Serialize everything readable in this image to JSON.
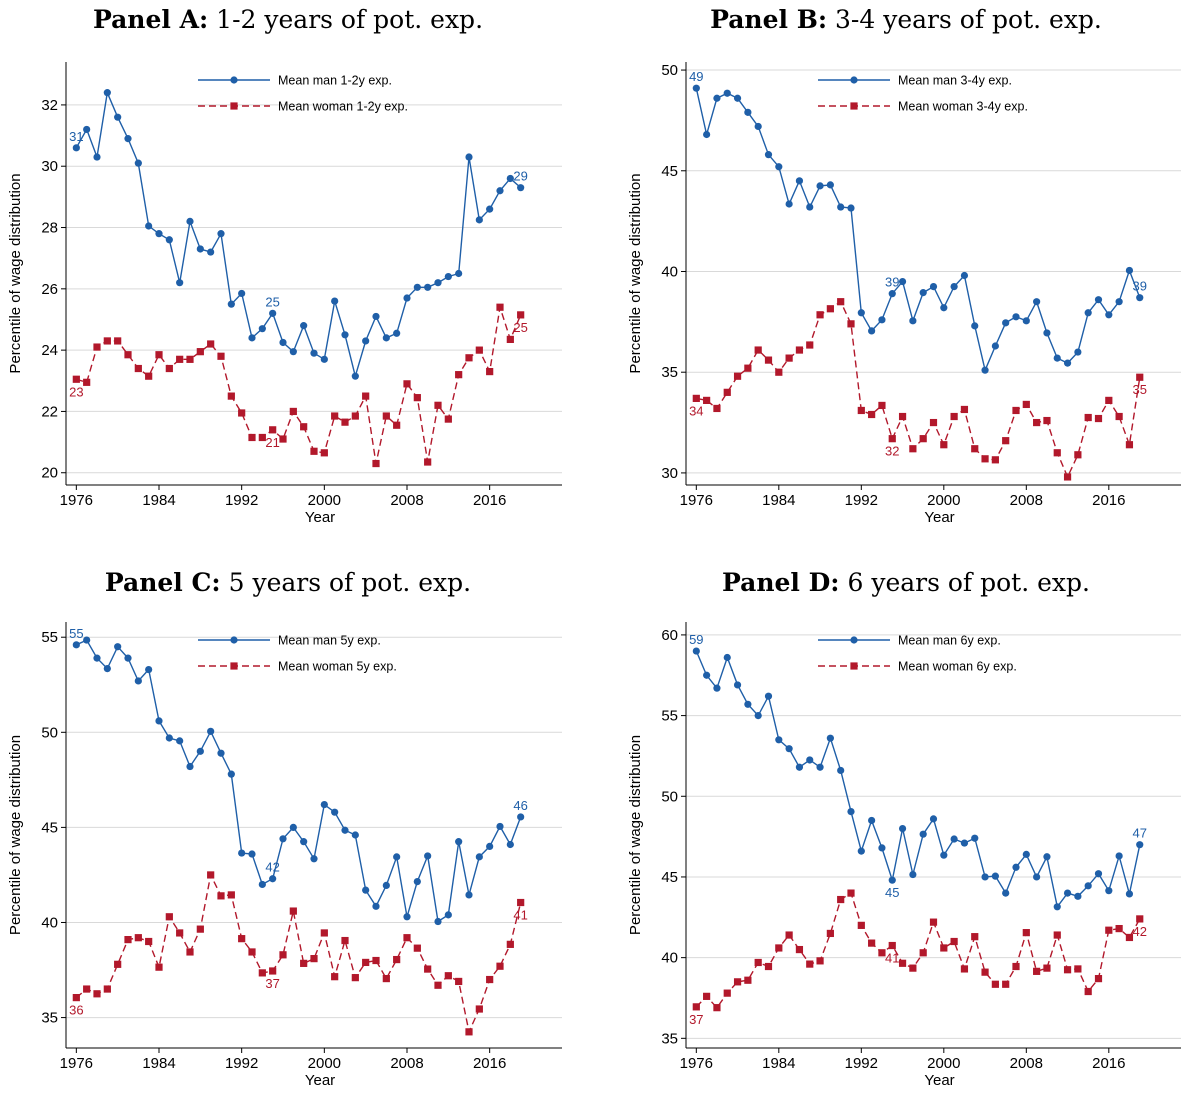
{
  "figure": {
    "colors": {
      "man": "#1f5fa8",
      "woman": "#b2182b",
      "grid": "#d9d9d9"
    }
  },
  "chart_data": [
    {
      "type": "line",
      "title_bold": "Panel A:",
      "title_rest": "1-2 years of pot. exp.",
      "xlabel": "Year",
      "ylabel": "Percentile of wage distribution",
      "xlim": [
        1975,
        2023
      ],
      "ylim": [
        19.6,
        33.4
      ],
      "xticks": [
        1976,
        1984,
        1992,
        2000,
        2008,
        2016
      ],
      "yticks": [
        20,
        22,
        24,
        26,
        28,
        30,
        32
      ],
      "legend_position": "top-center",
      "x": [
        1976,
        1977,
        1978,
        1979,
        1980,
        1981,
        1982,
        1983,
        1984,
        1985,
        1986,
        1987,
        1988,
        1989,
        1990,
        1991,
        1992,
        1993,
        1994,
        1995,
        1996,
        1997,
        1998,
        1999,
        2000,
        2001,
        2002,
        2003,
        2004,
        2005,
        2006,
        2007,
        2008,
        2009,
        2010,
        2011,
        2012,
        2013,
        2014,
        2015,
        2016,
        2017,
        2018,
        2019
      ],
      "series": [
        {
          "name": "Mean man 1-2y exp.",
          "marker": "circle",
          "dash": false,
          "values": [
            30.6,
            31.2,
            30.3,
            32.4,
            31.6,
            30.9,
            30.1,
            28.05,
            27.8,
            27.6,
            26.2,
            28.2,
            27.3,
            27.2,
            27.8,
            25.5,
            25.85,
            24.4,
            24.7,
            25.2,
            24.25,
            23.95,
            24.8,
            23.9,
            23.7,
            25.6,
            24.5,
            23.15,
            24.3,
            25.1,
            24.4,
            24.55,
            25.7,
            26.05,
            26.05,
            26.2,
            26.4,
            26.5,
            30.3,
            28.25,
            28.6,
            29.2,
            29.6,
            29.3
          ]
        },
        {
          "name": "Mean woman 1-2y exp.",
          "marker": "square",
          "dash": true,
          "values": [
            23.05,
            22.95,
            24.1,
            24.3,
            24.3,
            23.85,
            23.4,
            23.15,
            23.85,
            23.4,
            23.7,
            23.7,
            23.95,
            24.2,
            23.8,
            22.5,
            21.95,
            21.15,
            21.15,
            21.4,
            21.1,
            22.0,
            21.5,
            20.7,
            20.65,
            21.85,
            21.65,
            21.85,
            22.5,
            20.3,
            21.85,
            21.55,
            22.9,
            22.45,
            20.35,
            22.2,
            21.75,
            23.2,
            23.75,
            24.0,
            23.3,
            25.4,
            24.35,
            25.15
          ]
        }
      ],
      "annotations": [
        {
          "text": "31",
          "series": 0,
          "x": 1976,
          "pos": "above"
        },
        {
          "text": "25",
          "series": 0,
          "x": 1995,
          "pos": "above"
        },
        {
          "text": "29",
          "series": 0,
          "x": 2019,
          "pos": "above"
        },
        {
          "text": "23",
          "series": 1,
          "x": 1976,
          "pos": "below"
        },
        {
          "text": "21",
          "series": 1,
          "x": 1995,
          "pos": "below"
        },
        {
          "text": "25",
          "series": 1,
          "x": 2019,
          "pos": "below"
        }
      ]
    },
    {
      "type": "line",
      "title_bold": "Panel B:",
      "title_rest": "3-4 years of pot. exp.",
      "xlabel": "Year",
      "ylabel": "Percentile of wage distribution",
      "xlim": [
        1975,
        2023
      ],
      "ylim": [
        29.4,
        50.4
      ],
      "xticks": [
        1976,
        1984,
        1992,
        2000,
        2008,
        2016
      ],
      "yticks": [
        30,
        35,
        40,
        45,
        50
      ],
      "legend_position": "top-center",
      "x": [
        1976,
        1977,
        1978,
        1979,
        1980,
        1981,
        1982,
        1983,
        1984,
        1985,
        1986,
        1987,
        1988,
        1989,
        1990,
        1991,
        1992,
        1993,
        1994,
        1995,
        1996,
        1997,
        1998,
        1999,
        2000,
        2001,
        2002,
        2003,
        2004,
        2005,
        2006,
        2007,
        2008,
        2009,
        2010,
        2011,
        2012,
        2013,
        2014,
        2015,
        2016,
        2017,
        2018,
        2019
      ],
      "series": [
        {
          "name": "Mean man 3-4y exp.",
          "marker": "circle",
          "dash": false,
          "values": [
            49.1,
            46.8,
            48.6,
            48.85,
            48.6,
            47.9,
            47.2,
            45.8,
            45.2,
            43.35,
            44.5,
            43.2,
            44.25,
            44.3,
            43.2,
            43.15,
            37.95,
            37.05,
            37.6,
            38.9,
            39.5,
            37.55,
            38.95,
            39.25,
            38.2,
            39.25,
            39.8,
            37.3,
            35.1,
            36.3,
            37.45,
            37.75,
            37.55,
            38.5,
            36.95,
            35.7,
            35.45,
            36.0,
            37.95,
            38.6,
            37.85,
            38.5,
            40.05,
            38.7
          ]
        },
        {
          "name": "Mean woman 3-4y exp.",
          "marker": "square",
          "dash": true,
          "values": [
            33.7,
            33.6,
            33.2,
            34.0,
            34.8,
            35.2,
            36.1,
            35.6,
            35.0,
            35.7,
            36.1,
            36.35,
            37.85,
            38.15,
            38.5,
            37.4,
            33.1,
            32.9,
            33.35,
            31.7,
            32.8,
            31.2,
            31.7,
            32.5,
            31.4,
            32.8,
            33.15,
            31.2,
            30.7,
            30.65,
            31.6,
            33.1,
            33.4,
            32.5,
            32.6,
            31.0,
            29.8,
            30.9,
            32.75,
            32.7,
            33.6,
            32.8,
            31.4,
            34.75
          ]
        }
      ],
      "annotations": [
        {
          "text": "49",
          "series": 0,
          "x": 1976,
          "pos": "above"
        },
        {
          "text": "39",
          "series": 0,
          "x": 1995,
          "pos": "above"
        },
        {
          "text": "39",
          "series": 0,
          "x": 2019,
          "pos": "above"
        },
        {
          "text": "34",
          "series": 1,
          "x": 1976,
          "pos": "below"
        },
        {
          "text": "32",
          "series": 1,
          "x": 1995,
          "pos": "below"
        },
        {
          "text": "35",
          "series": 1,
          "x": 2019,
          "pos": "below"
        }
      ]
    },
    {
      "type": "line",
      "title_bold": "Panel C:",
      "title_rest": "5 years of pot. exp.",
      "xlabel": "Year",
      "ylabel": "Percentile of wage distribution",
      "xlim": [
        1975,
        2023
      ],
      "ylim": [
        33.4,
        55.8
      ],
      "xticks": [
        1976,
        1984,
        1992,
        2000,
        2008,
        2016
      ],
      "yticks": [
        35,
        40,
        45,
        50,
        55
      ],
      "legend_position": "top-center",
      "x": [
        1976,
        1977,
        1978,
        1979,
        1980,
        1981,
        1982,
        1983,
        1984,
        1985,
        1986,
        1987,
        1988,
        1989,
        1990,
        1991,
        1992,
        1993,
        1994,
        1995,
        1996,
        1997,
        1998,
        1999,
        2000,
        2001,
        2002,
        2003,
        2004,
        2005,
        2006,
        2007,
        2008,
        2009,
        2010,
        2011,
        2012,
        2013,
        2014,
        2015,
        2016,
        2017,
        2018,
        2019
      ],
      "series": [
        {
          "name": "Mean man 5y exp.",
          "marker": "circle",
          "dash": false,
          "values": [
            54.6,
            54.85,
            53.9,
            53.35,
            54.5,
            53.9,
            52.7,
            53.3,
            50.6,
            49.7,
            49.55,
            48.2,
            49.0,
            50.05,
            48.9,
            47.8,
            43.65,
            43.6,
            42.0,
            42.3,
            44.4,
            45.0,
            44.25,
            43.35,
            46.2,
            45.8,
            44.85,
            44.6,
            41.7,
            40.85,
            41.95,
            43.45,
            40.3,
            42.15,
            43.5,
            40.05,
            40.4,
            44.25,
            41.45,
            43.45,
            44.0,
            45.05,
            44.1,
            45.55
          ]
        },
        {
          "name": "Mean woman 5y exp.",
          "marker": "square",
          "dash": true,
          "values": [
            36.05,
            36.5,
            36.25,
            36.5,
            37.8,
            39.1,
            39.2,
            39.0,
            37.65,
            40.3,
            39.45,
            38.45,
            39.65,
            42.5,
            41.4,
            41.45,
            39.15,
            38.45,
            37.35,
            37.45,
            38.3,
            40.6,
            37.85,
            38.1,
            39.45,
            37.15,
            39.05,
            37.1,
            37.9,
            38.0,
            37.05,
            38.05,
            39.2,
            38.65,
            37.55,
            36.7,
            37.2,
            36.9,
            34.25,
            35.45,
            37.0,
            37.7,
            38.85,
            41.05
          ]
        }
      ],
      "annotations": [
        {
          "text": "55",
          "series": 0,
          "x": 1976,
          "pos": "above"
        },
        {
          "text": "42",
          "series": 0,
          "x": 1995,
          "pos": "above"
        },
        {
          "text": "46",
          "series": 0,
          "x": 2019,
          "pos": "above"
        },
        {
          "text": "36",
          "series": 1,
          "x": 1976,
          "pos": "below"
        },
        {
          "text": "37",
          "series": 1,
          "x": 1995,
          "pos": "below"
        },
        {
          "text": "41",
          "series": 1,
          "x": 2019,
          "pos": "below"
        }
      ]
    },
    {
      "type": "line",
      "title_bold": "Panel D:",
      "title_rest": "6 years of pot. exp.",
      "xlabel": "Year",
      "ylabel": "Percentile of wage distribution",
      "xlim": [
        1975,
        2023
      ],
      "ylim": [
        34.4,
        60.8
      ],
      "xticks": [
        1976,
        1984,
        1992,
        2000,
        2008,
        2016
      ],
      "yticks": [
        35,
        40,
        45,
        50,
        55,
        60
      ],
      "legend_position": "top-center",
      "x": [
        1976,
        1977,
        1978,
        1979,
        1980,
        1981,
        1982,
        1983,
        1984,
        1985,
        1986,
        1987,
        1988,
        1989,
        1990,
        1991,
        1992,
        1993,
        1994,
        1995,
        1996,
        1997,
        1998,
        1999,
        2000,
        2001,
        2002,
        2003,
        2004,
        2005,
        2006,
        2007,
        2008,
        2009,
        2010,
        2011,
        2012,
        2013,
        2014,
        2015,
        2016,
        2017,
        2018,
        2019
      ],
      "series": [
        {
          "name": "Mean man 6y exp.",
          "marker": "circle",
          "dash": false,
          "values": [
            59.0,
            57.5,
            56.7,
            58.6,
            56.9,
            55.7,
            55.0,
            56.2,
            53.5,
            52.95,
            51.8,
            52.25,
            51.8,
            53.6,
            51.6,
            49.05,
            46.6,
            48.5,
            46.8,
            44.8,
            48.0,
            45.15,
            47.65,
            48.6,
            46.35,
            47.35,
            47.1,
            47.4,
            45.0,
            45.05,
            44.0,
            45.6,
            46.4,
            45.0,
            46.25,
            43.15,
            44.0,
            43.8,
            44.45,
            45.2,
            44.15,
            46.3,
            43.95,
            47.0
          ]
        },
        {
          "name": "Mean woman 6y exp.",
          "marker": "square",
          "dash": true,
          "values": [
            36.95,
            37.6,
            36.9,
            37.8,
            38.5,
            38.6,
            39.7,
            39.45,
            40.6,
            41.4,
            40.5,
            39.6,
            39.8,
            41.5,
            43.6,
            44.0,
            42.0,
            40.9,
            40.3,
            40.75,
            39.65,
            39.35,
            40.3,
            42.2,
            40.6,
            41.0,
            39.3,
            41.3,
            39.1,
            38.35,
            38.35,
            39.45,
            41.55,
            39.15,
            39.35,
            41.4,
            39.25,
            39.3,
            37.9,
            38.7,
            41.7,
            41.8,
            41.25,
            42.4
          ]
        }
      ],
      "annotations": [
        {
          "text": "59",
          "series": 0,
          "x": 1976,
          "pos": "above"
        },
        {
          "text": "45",
          "series": 0,
          "x": 1995,
          "pos": "below"
        },
        {
          "text": "47",
          "series": 0,
          "x": 2019,
          "pos": "above"
        },
        {
          "text": "37",
          "series": 1,
          "x": 1976,
          "pos": "below"
        },
        {
          "text": "41",
          "series": 1,
          "x": 1995,
          "pos": "below"
        },
        {
          "text": "42",
          "series": 1,
          "x": 2019,
          "pos": "below"
        }
      ]
    }
  ]
}
